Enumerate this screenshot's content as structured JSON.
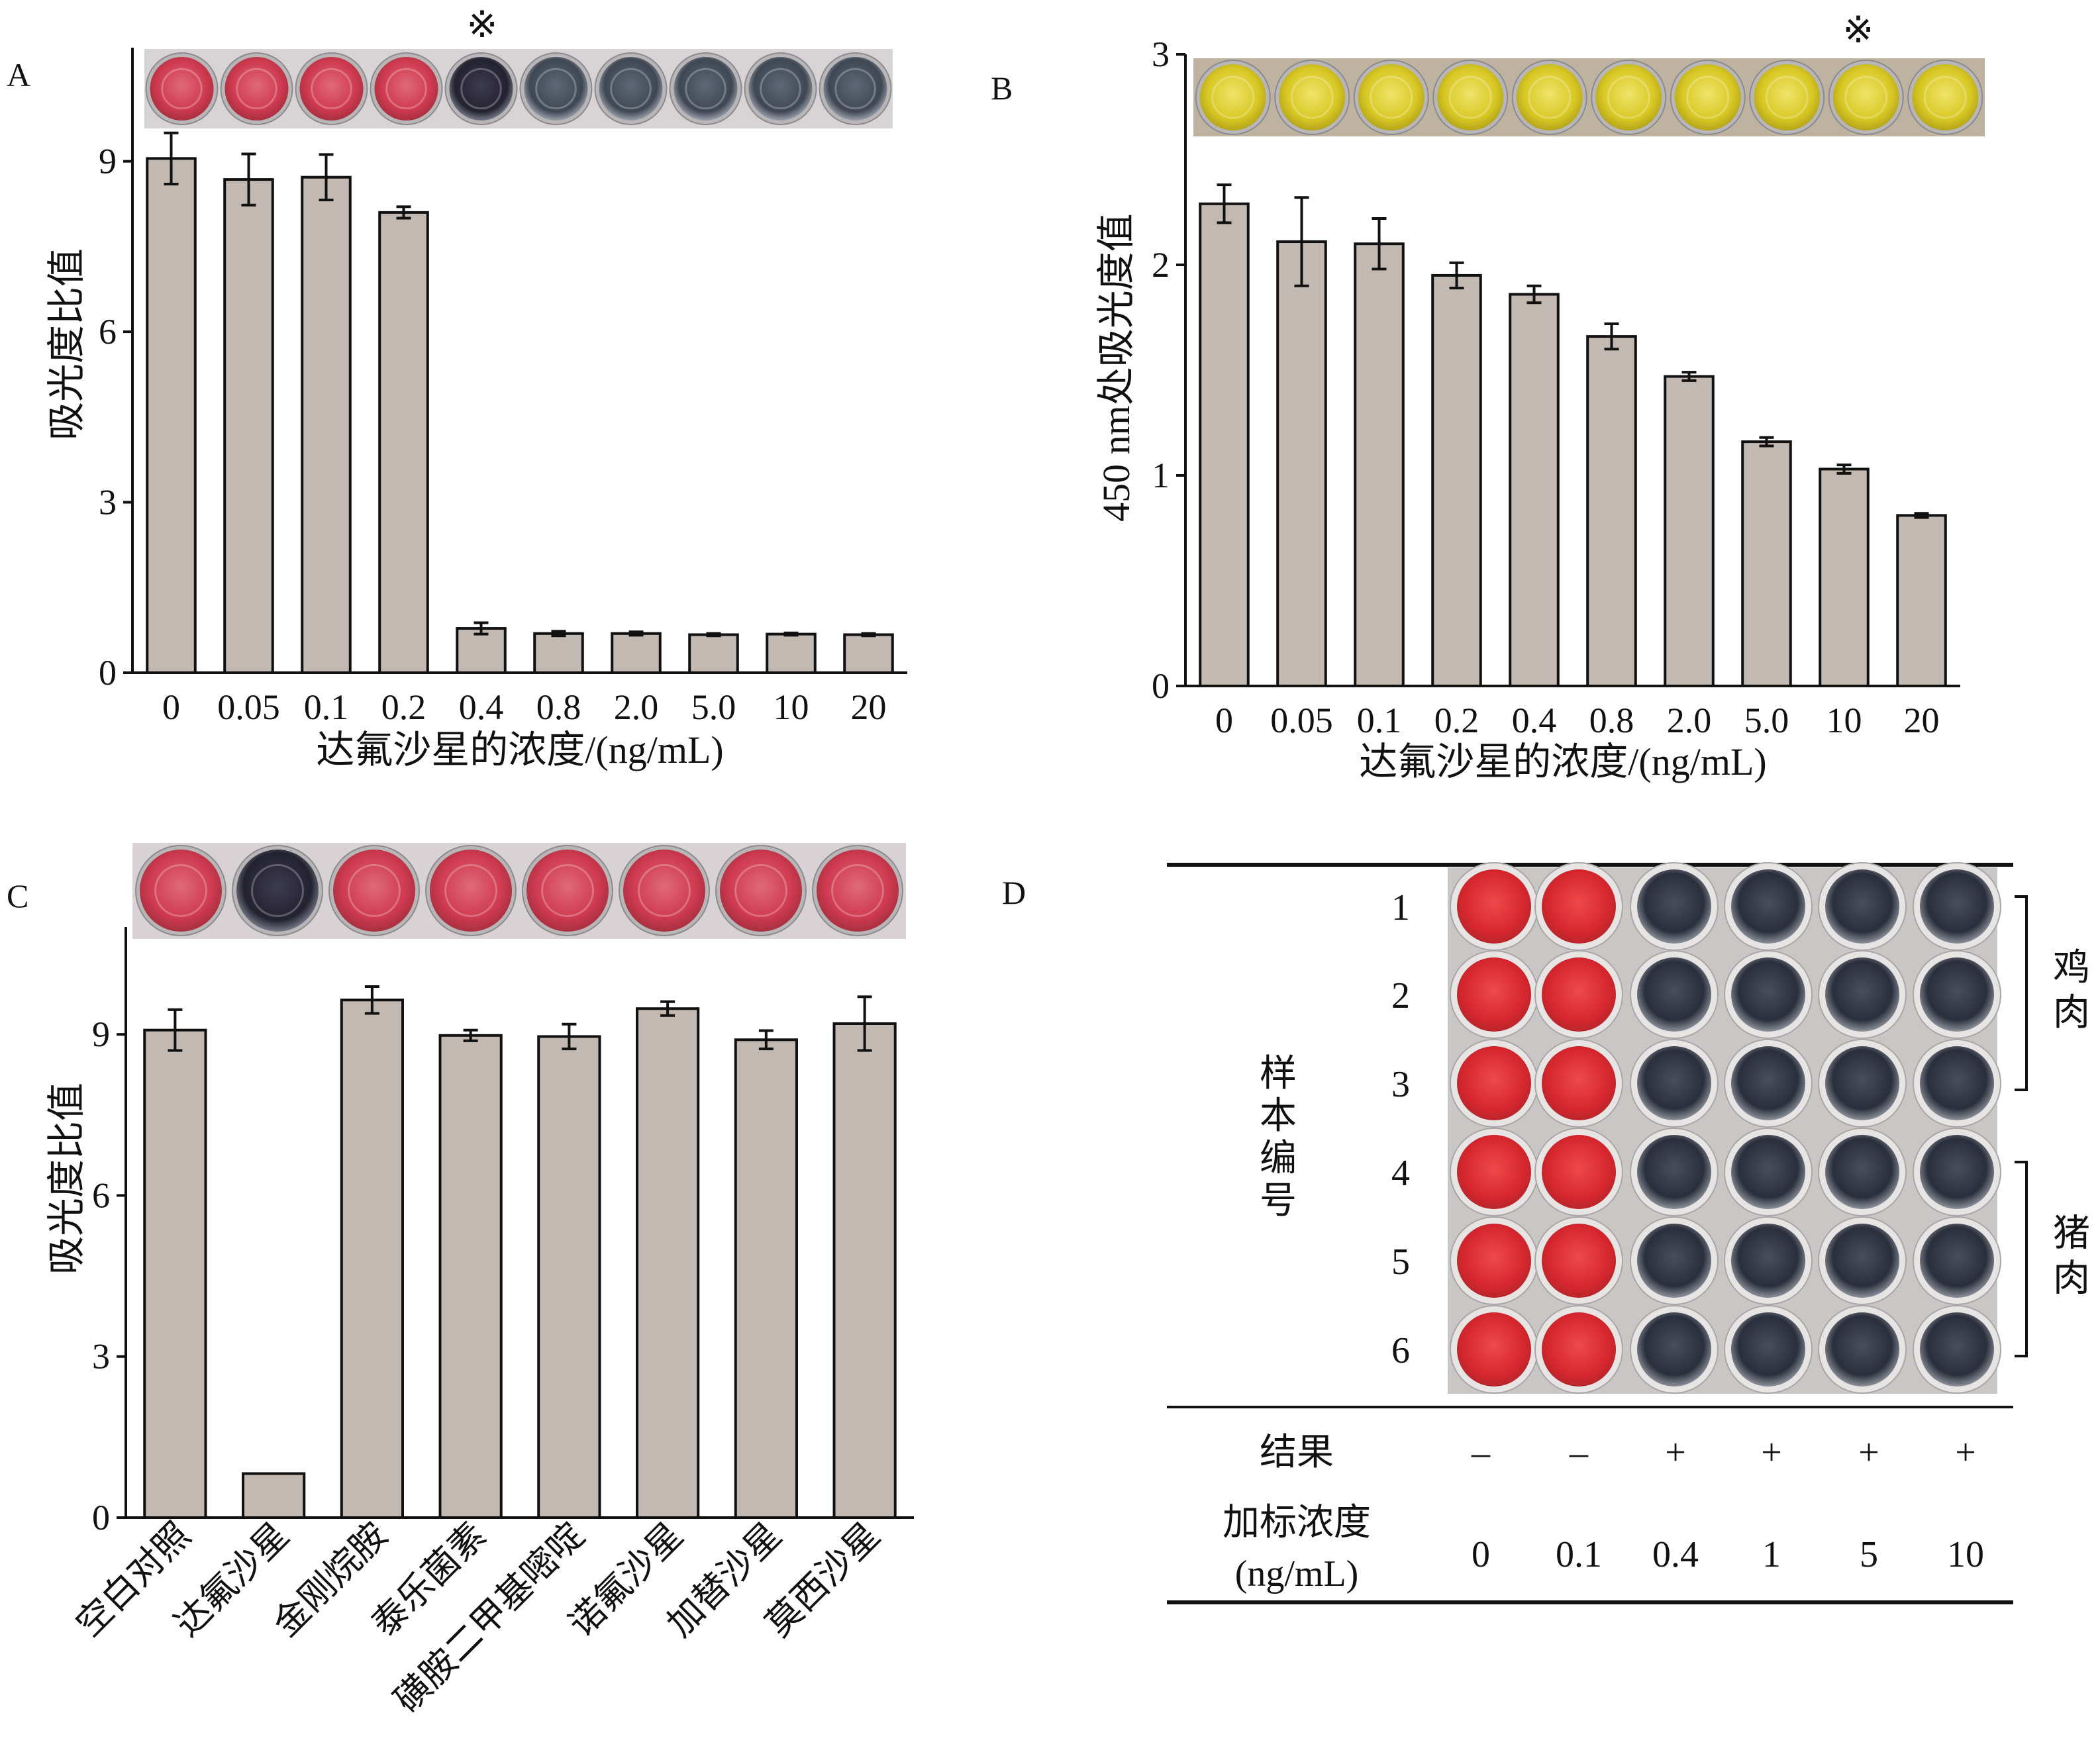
{
  "colors": {
    "bar": "#c3b9b3",
    "stroke": "#111111",
    "marker": "#e8262a",
    "red_well": "#d23a4e",
    "dark_well": "#2e3340",
    "gray_well": "#46505e",
    "yellow_well": "#ddcf2f",
    "panel_d_red": "#de2b33"
  },
  "chart_data": [
    {
      "panel": "A",
      "type": "bar",
      "categories": [
        "0",
        "0.05",
        "0.1",
        "0.2",
        "0.4",
        "0.8",
        "2.0",
        "5.0",
        "10",
        "20"
      ],
      "values": [
        9.05,
        8.68,
        8.72,
        8.1,
        0.78,
        0.69,
        0.69,
        0.67,
        0.68,
        0.67
      ],
      "errors": [
        0.45,
        0.45,
        0.4,
        0.1,
        0.1,
        0.04,
        0.03,
        0.02,
        0.02,
        0.02
      ],
      "ylim": [
        0,
        11
      ],
      "yticks": [
        "0",
        "3",
        "6",
        "9"
      ],
      "ylabel": "吸光度比值",
      "xlabel": "达氟沙星的浓度/(ng/mL)",
      "wells": [
        "red",
        "red",
        "red",
        "red",
        "dark",
        "gray",
        "gray",
        "gray",
        "gray",
        "gray"
      ],
      "marker": "※",
      "marker_index": 4
    },
    {
      "panel": "B",
      "type": "bar",
      "categories": [
        "0",
        "0.05",
        "0.1",
        "0.2",
        "0.4",
        "0.8",
        "2.0",
        "5.0",
        "10",
        "20"
      ],
      "values": [
        2.29,
        2.11,
        2.1,
        1.95,
        1.86,
        1.66,
        1.47,
        1.16,
        1.03,
        0.81
      ],
      "errors": [
        0.09,
        0.21,
        0.12,
        0.06,
        0.04,
        0.06,
        0.02,
        0.02,
        0.02,
        0.01
      ],
      "ylim": [
        0,
        3
      ],
      "yticks": [
        "0",
        "1",
        "2",
        "3"
      ],
      "ylabel": "450 nm处吸光度值",
      "xlabel": "达氟沙星的浓度/(ng/mL)",
      "wells": [
        "yellow",
        "yellow",
        "yellow",
        "yellow",
        "yellow",
        "yellow",
        "yellow",
        "yellow",
        "yellow",
        "yellow"
      ],
      "marker": "※",
      "marker_index": 8
    },
    {
      "panel": "C",
      "type": "bar",
      "categories": [
        "空白对照",
        "达氟沙星",
        "金刚烷胺",
        "泰乐菌素",
        "磺胺二甲基嘧啶",
        "诺氟沙星",
        "加替沙星",
        "莫西沙星"
      ],
      "values": [
        9.08,
        0.82,
        9.64,
        8.98,
        8.96,
        9.48,
        8.9,
        9.2
      ],
      "errors": [
        0.38,
        0.0,
        0.25,
        0.1,
        0.23,
        0.13,
        0.17,
        0.5
      ],
      "ylim": [
        0,
        11
      ],
      "yticks": [
        "0",
        "3",
        "6",
        "9"
      ],
      "ylabel": "吸光度比值",
      "xlabel": "",
      "wells": [
        "red",
        "dark",
        "red",
        "red",
        "red",
        "red",
        "red",
        "red"
      ]
    },
    {
      "panel": "D",
      "type": "table",
      "row_header": "样本编号",
      "rows": [
        "1",
        "2",
        "3",
        "4",
        "5",
        "6"
      ],
      "groups": [
        {
          "name": "鸡肉",
          "rows": [
            1,
            3
          ]
        },
        {
          "name": "猪肉",
          "rows": [
            4,
            6
          ]
        }
      ],
      "result_label": "结果",
      "results": [
        "–",
        "–",
        "+",
        "+",
        "+",
        "+"
      ],
      "conc_label": "加标浓度",
      "conc_unit": "(ng/mL)",
      "concentrations": [
        "0",
        "0.1",
        "0.4",
        "1",
        "5",
        "10"
      ],
      "well_colors": [
        "red",
        "red",
        "dark",
        "dark",
        "dark",
        "dark"
      ]
    }
  ]
}
